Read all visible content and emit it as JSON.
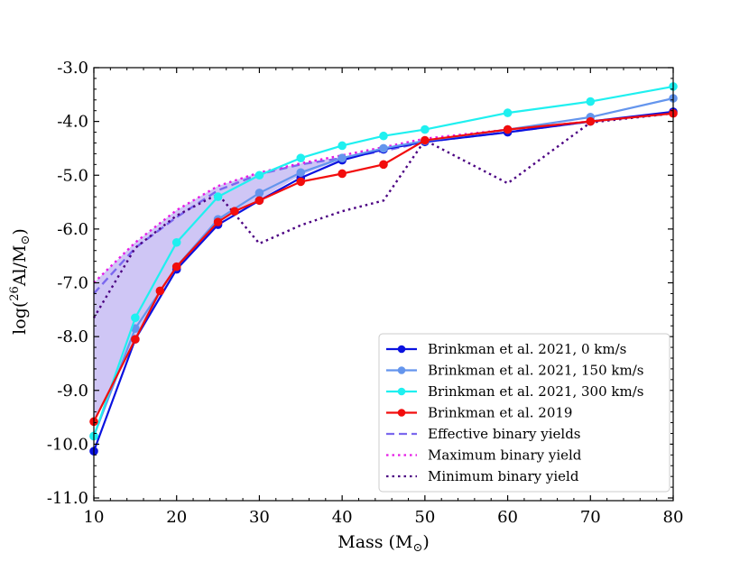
{
  "chart_data": {
    "type": "line",
    "title": "",
    "xlabel": "Mass (M",
    "xlabel_sub": "⊙",
    "xlabel_close": ")",
    "ylabel_prefix": "log(",
    "ylabel_sup": "26",
    "ylabel_mid": "Al/M",
    "ylabel_sub": "⊙",
    "ylabel_close": ")",
    "xlim": [
      10,
      80
    ],
    "ylim": [
      -11.05,
      -3.0
    ],
    "xticks": [
      "10",
      "20",
      "30",
      "40",
      "50",
      "60",
      "70",
      "80"
    ],
    "yticks": [
      "-3.0",
      "-4.0",
      "-5.0",
      "-6.0",
      "-7.0",
      "-8.0",
      "-9.0",
      "-10.0",
      "-11.0"
    ],
    "shaded_region": {
      "color": "#cfc6f5",
      "x": [
        10,
        15,
        20,
        25,
        30,
        35,
        40
      ],
      "upper": [
        -7.0,
        -6.25,
        -5.65,
        -5.2,
        -4.95,
        -4.78,
        -4.66
      ],
      "lower": [
        -9.6,
        -8.05,
        -6.72,
        -5.88,
        -5.45,
        -5.0,
        -4.7
      ]
    },
    "series": [
      {
        "name": "Brinkman et al. 2021, 0 km/s",
        "color": "#0a12e0",
        "style": "solid-marker",
        "x": [
          10,
          15,
          20,
          25,
          30,
          35,
          40,
          45,
          50,
          60,
          70,
          80
        ],
        "y": [
          -10.13,
          -8.05,
          -6.75,
          -5.92,
          -5.47,
          -5.05,
          -4.72,
          -4.52,
          -4.38,
          -4.2,
          -4.0,
          -3.82
        ]
      },
      {
        "name": "Brinkman et al. 2021, 150 km/s",
        "color": "#6495ed",
        "style": "solid-marker",
        "x": [
          10,
          15,
          20,
          25,
          30,
          35,
          40,
          45,
          50,
          60,
          70,
          80
        ],
        "y": [
          -9.85,
          -7.85,
          -6.7,
          -5.82,
          -5.33,
          -4.95,
          -4.68,
          -4.5,
          -4.36,
          -4.15,
          -3.92,
          -3.57
        ]
      },
      {
        "name": "Brinkman et al. 2021, 300 km/s",
        "color": "#1ff0f0",
        "style": "solid-marker",
        "x": [
          10,
          15,
          20,
          25,
          30,
          35,
          40,
          45,
          50,
          60,
          70,
          80
        ],
        "y": [
          -9.85,
          -7.65,
          -6.25,
          -5.4,
          -5.0,
          -4.68,
          -4.45,
          -4.27,
          -4.15,
          -3.84,
          -3.63,
          -3.35
        ]
      },
      {
        "name": "Brinkman et al. 2019",
        "color": "#f20d0d",
        "style": "solid-marker",
        "x": [
          10,
          15,
          18,
          20,
          25,
          27,
          30,
          35,
          40,
          45,
          50,
          60,
          70,
          80
        ],
        "y": [
          -9.58,
          -8.05,
          -7.15,
          -6.7,
          -5.87,
          -5.67,
          -5.47,
          -5.12,
          -4.97,
          -4.8,
          -4.35,
          -4.15,
          -4.0,
          -3.85
        ]
      },
      {
        "name": "Effective binary yields",
        "color": "#7b68ee",
        "style": "dashed",
        "x": [
          10,
          15,
          20,
          25,
          30,
          35,
          40,
          45,
          50,
          60,
          70,
          80
        ],
        "y": [
          -7.2,
          -6.35,
          -5.78,
          -5.28,
          -4.98,
          -4.8,
          -4.68,
          -4.55,
          -4.38,
          -4.2,
          -4.0,
          -3.85
        ]
      },
      {
        "name": "Maximum binary yield",
        "color": "#e619e6",
        "style": "dotted",
        "x": [
          10,
          15,
          20,
          25,
          30,
          35,
          40,
          45,
          50,
          60,
          70,
          80
        ],
        "y": [
          -7.0,
          -6.25,
          -5.65,
          -5.2,
          -4.95,
          -4.78,
          -4.63,
          -4.48,
          -4.32,
          -4.15,
          -4.0,
          -3.84
        ]
      },
      {
        "name": "Minimum binary yield",
        "color": "#4b0082",
        "style": "dotted",
        "x": [
          10,
          15,
          20,
          25,
          30,
          35,
          40,
          45,
          50,
          60,
          70,
          80
        ],
        "y": [
          -7.65,
          -6.35,
          -5.75,
          -5.35,
          -6.27,
          -5.93,
          -5.67,
          -5.47,
          -4.35,
          -5.15,
          -4.02,
          -3.85
        ]
      }
    ],
    "legend_location": "lower-right"
  }
}
